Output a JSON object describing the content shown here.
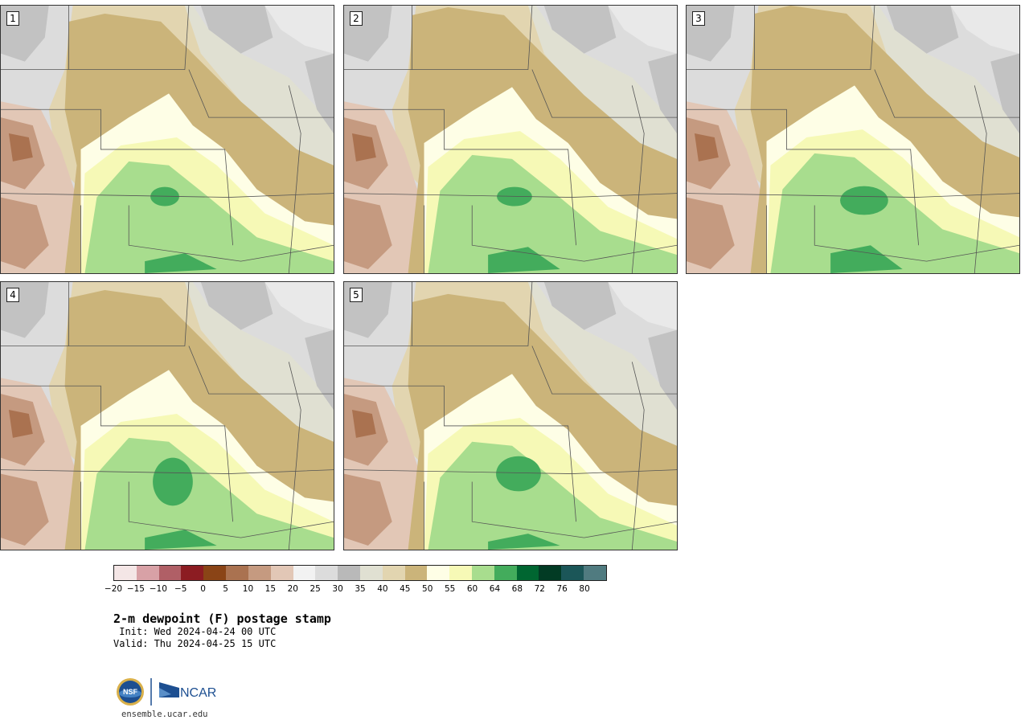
{
  "panels": [
    {
      "label": "1",
      "variant": 0
    },
    {
      "label": "2",
      "variant": 1
    },
    {
      "label": "3",
      "variant": 2
    },
    {
      "label": "4",
      "variant": 3
    },
    {
      "label": "5",
      "variant": 4
    }
  ],
  "colorbar": {
    "ticks": [
      "−20",
      "−15",
      "−10",
      "−5",
      "0",
      "5",
      "10",
      "15",
      "20",
      "25",
      "30",
      "35",
      "40",
      "45",
      "50",
      "55",
      "60",
      "64",
      "68",
      "72",
      "76",
      "80"
    ],
    "colors": [
      "#f4e6e6",
      "#d8a1a6",
      "#b05f66",
      "#8c1c22",
      "#8a4416",
      "#aa7250",
      "#c59a80",
      "#e2c7b6",
      "#f2f2f2",
      "#dcdcdc",
      "#b9b9b9",
      "#e0e0d2",
      "#e2d5b0",
      "#cbb47a",
      "#fefee6",
      "#f6f9b6",
      "#a8dd8e",
      "#43ac5c",
      "#006631",
      "#023b24",
      "#1b5658",
      "#507b80"
    ]
  },
  "title": "2-m dewpoint (F) postage stamp",
  "init": " Init: Wed 2024-04-24 00 UTC",
  "valid": "Valid: Thu 2024-04-25 15 UTC",
  "logo": {
    "nsf": "NSF",
    "ncar": "NCAR"
  },
  "url": "ensemble.ucar.edu"
}
